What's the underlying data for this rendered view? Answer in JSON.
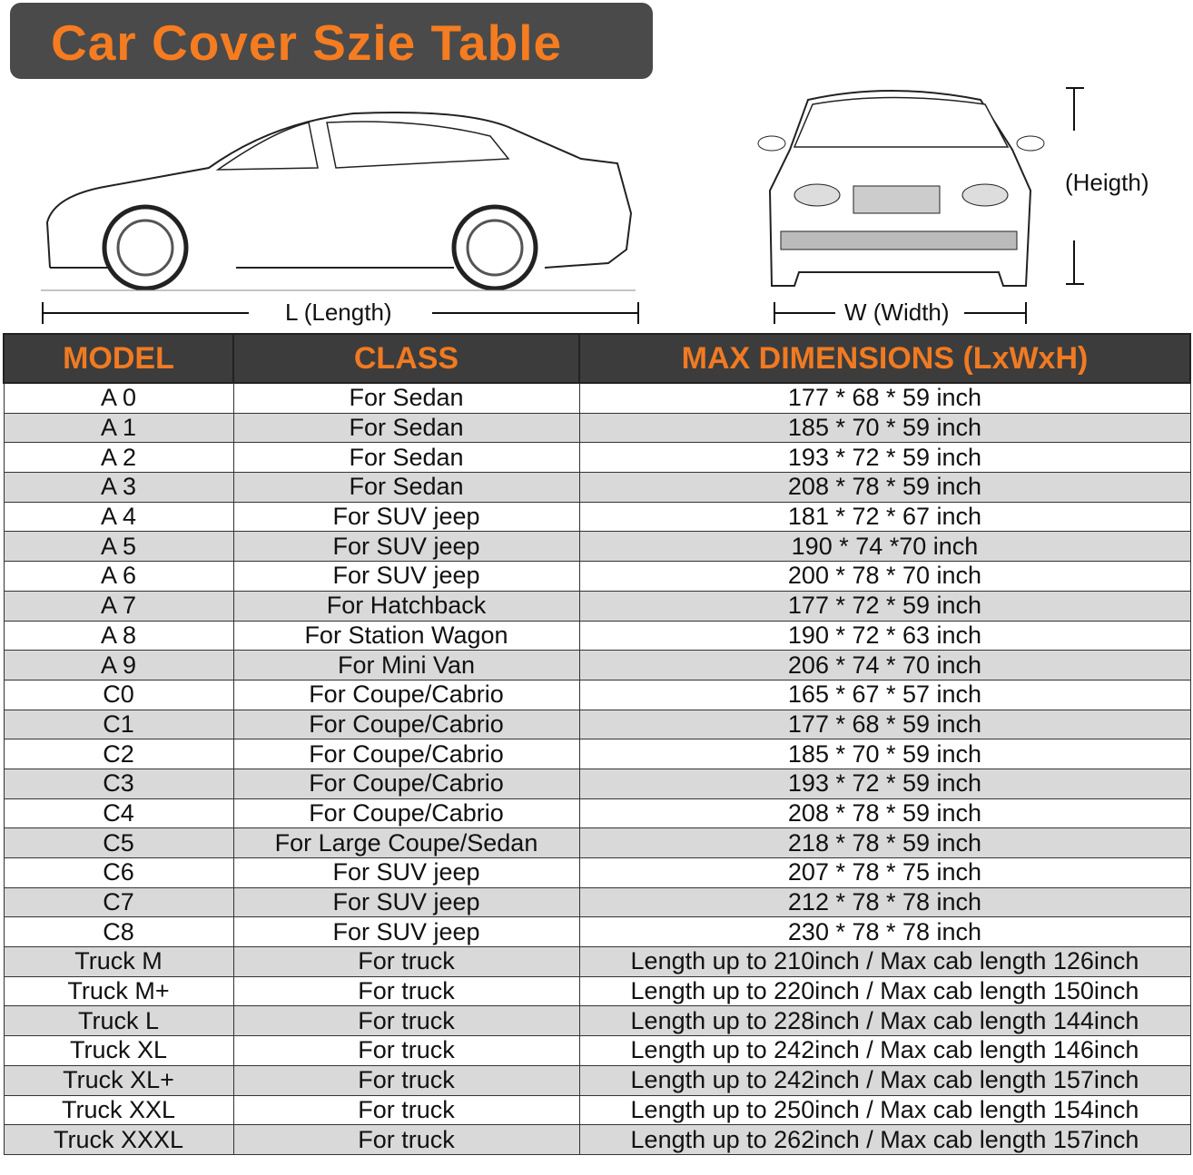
{
  "title": "Car Cover Szie Table",
  "labels": {
    "length": "L (Length)",
    "width": "W (Width)",
    "height": "(Heigth)"
  },
  "headers": [
    "MODEL",
    "CLASS",
    "MAX DIMENSIONS (LxWxH)"
  ],
  "rows": [
    [
      "A 0",
      "For Sedan",
      "177 * 68 * 59 inch"
    ],
    [
      "A 1",
      "For Sedan",
      "185 * 70 * 59 inch"
    ],
    [
      "A 2",
      "For Sedan",
      "193 * 72 * 59 inch"
    ],
    [
      "A 3",
      "For Sedan",
      "208 * 78 * 59 inch"
    ],
    [
      "A 4",
      "For SUV jeep",
      "181 * 72 * 67 inch"
    ],
    [
      "A 5",
      "For SUV jeep",
      "190 * 74  *70 inch"
    ],
    [
      "A 6",
      "For SUV jeep",
      "200 * 78 * 70 inch"
    ],
    [
      "A 7",
      "For Hatchback",
      "177 * 72 * 59 inch"
    ],
    [
      "A 8",
      "For Station Wagon",
      "190 * 72 * 63 inch"
    ],
    [
      "A 9",
      "For Mini Van",
      "206 * 74 * 70 inch"
    ],
    [
      "C0",
      "For Coupe/Cabrio",
      "165 * 67 * 57 inch"
    ],
    [
      "C1",
      "For Coupe/Cabrio",
      "177 * 68 * 59 inch"
    ],
    [
      "C2",
      "For Coupe/Cabrio",
      "185 * 70 * 59 inch"
    ],
    [
      "C3",
      "For Coupe/Cabrio",
      "193 * 72 * 59 inch"
    ],
    [
      "C4",
      "For Coupe/Cabrio",
      "208 * 78 * 59 inch"
    ],
    [
      "C5",
      "For Large Coupe/Sedan",
      "218 * 78 * 59 inch"
    ],
    [
      "C6",
      "For SUV jeep",
      "207 * 78 * 75 inch"
    ],
    [
      "C7",
      "For SUV jeep",
      "212 * 78 * 78 inch"
    ],
    [
      "C8",
      "For SUV jeep",
      "230 * 78 * 78 inch"
    ],
    [
      "Truck M",
      "For truck",
      "Length up to 210inch / Max cab length 126inch"
    ],
    [
      "Truck M+",
      "For truck",
      "Length up to 220inch / Max cab length 150inch"
    ],
    [
      "Truck L",
      "For truck",
      "Length up to 228inch / Max cab length 144inch"
    ],
    [
      "Truck XL",
      "For truck",
      "Length up to 242inch / Max cab length 146inch"
    ],
    [
      "Truck XL+",
      "For truck",
      "Length up to 242inch / Max cab length 157inch"
    ],
    [
      "Truck XXL",
      "For truck",
      "Length up to 250inch / Max cab length 154inch"
    ],
    [
      "Truck XXXL",
      "For truck",
      "Length up to 262inch / Max cab length 157inch"
    ]
  ],
  "colors": {
    "accent": "#f07a22",
    "header_bg": "#3c3c3c",
    "alt_row": "#d9d9d9"
  }
}
